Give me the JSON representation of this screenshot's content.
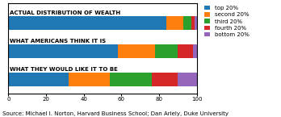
{
  "chart_data": {
    "type": "bar",
    "orientation": "horizontal",
    "stacked": true,
    "categories": [
      "ACTUAL DISTRIBUTION OF WEALTH",
      "WHAT AMERICANS THINK IT IS",
      "WHAT THEY WOULD LIKE IT TO BE"
    ],
    "series": [
      {
        "name": "top 20%",
        "values": [
          84,
          58,
          32
        ]
      },
      {
        "name": "second 20%",
        "values": [
          9,
          20,
          22
        ]
      },
      {
        "name": "third 20%",
        "values": [
          4,
          12,
          22
        ]
      },
      {
        "name": "fourth 20%",
        "values": [
          2,
          8,
          14
        ]
      },
      {
        "name": "bottom 20%",
        "values": [
          1,
          2,
          10
        ]
      }
    ],
    "xlim": [
      0,
      100
    ],
    "xticks": [
      0,
      20,
      40,
      60,
      80,
      100
    ],
    "tick_labels": "x",
    "grid": false,
    "legend": "upper left",
    "annotations": [
      "Source: Michael I. Norton, Harvard Business School; Dan Ariely, Duke University"
    ]
  }
}
